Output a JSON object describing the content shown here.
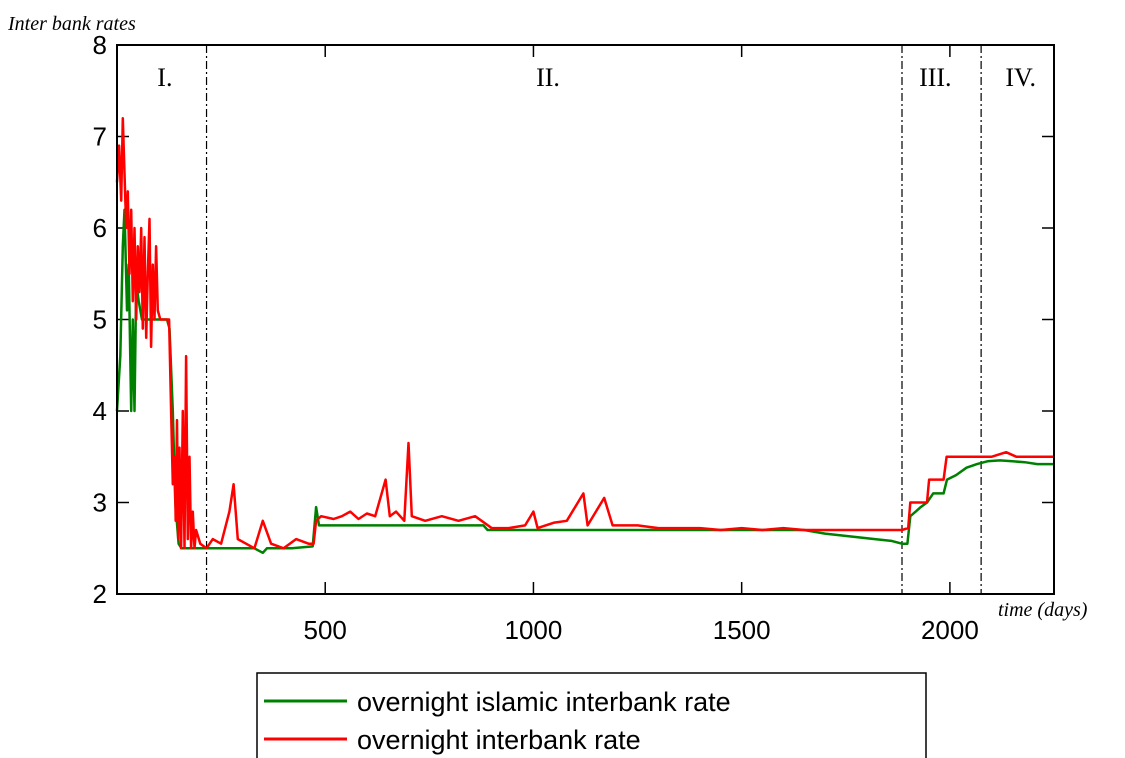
{
  "chart_data": {
    "type": "line",
    "ylabel": "Inter bank rates",
    "xlabel": "time (days)",
    "xlim": [
      0,
      2250
    ],
    "ylim": [
      2,
      8
    ],
    "x_ticks": [
      500,
      1000,
      1500,
      2000
    ],
    "y_ticks": [
      2,
      3,
      4,
      5,
      6,
      7,
      8
    ],
    "grid": false,
    "legend_position": "bottom-center",
    "regime_boundaries": [
      215,
      1885,
      2075
    ],
    "regimes": [
      {
        "label": "I.",
        "x": 115
      },
      {
        "label": "II.",
        "x": 1035
      },
      {
        "label": "III.",
        "x": 1965
      },
      {
        "label": "IV.",
        "x": 2170
      }
    ],
    "series": [
      {
        "name": "overnight islamic interbank rate",
        "color": "#008000",
        "points": [
          [
            0,
            4.0
          ],
          [
            8,
            4.6
          ],
          [
            14,
            5.8
          ],
          [
            18,
            6.2
          ],
          [
            24,
            5.1
          ],
          [
            28,
            5.6
          ],
          [
            34,
            4.0
          ],
          [
            38,
            5.0
          ],
          [
            42,
            4.0
          ],
          [
            46,
            5.4
          ],
          [
            52,
            5.2
          ],
          [
            60,
            5.0
          ],
          [
            80,
            5.0
          ],
          [
            100,
            5.0
          ],
          [
            120,
            5.0
          ],
          [
            126,
            4.9
          ],
          [
            134,
            4.0
          ],
          [
            140,
            3.0
          ],
          [
            148,
            2.55
          ],
          [
            155,
            2.5
          ],
          [
            200,
            2.5
          ],
          [
            260,
            2.5
          ],
          [
            330,
            2.5
          ],
          [
            350,
            2.45
          ],
          [
            360,
            2.5
          ],
          [
            420,
            2.5
          ],
          [
            470,
            2.52
          ],
          [
            478,
            2.95
          ],
          [
            485,
            2.75
          ],
          [
            540,
            2.75
          ],
          [
            650,
            2.75
          ],
          [
            760,
            2.75
          ],
          [
            880,
            2.75
          ],
          [
            890,
            2.7
          ],
          [
            1000,
            2.7
          ],
          [
            1200,
            2.7
          ],
          [
            1400,
            2.7
          ],
          [
            1500,
            2.7
          ],
          [
            1650,
            2.7
          ],
          [
            1700,
            2.66
          ],
          [
            1760,
            2.63
          ],
          [
            1820,
            2.6
          ],
          [
            1860,
            2.58
          ],
          [
            1885,
            2.55
          ],
          [
            1898,
            2.55
          ],
          [
            1905,
            2.85
          ],
          [
            1918,
            2.9
          ],
          [
            1930,
            2.95
          ],
          [
            1945,
            3.0
          ],
          [
            1960,
            3.1
          ],
          [
            1985,
            3.1
          ],
          [
            1993,
            3.25
          ],
          [
            2015,
            3.3
          ],
          [
            2040,
            3.38
          ],
          [
            2065,
            3.42
          ],
          [
            2090,
            3.45
          ],
          [
            2120,
            3.46
          ],
          [
            2150,
            3.45
          ],
          [
            2180,
            3.44
          ],
          [
            2210,
            3.42
          ],
          [
            2250,
            3.42
          ]
        ]
      },
      {
        "name": "overnight interbank rate",
        "color": "#ff0000",
        "points": [
          [
            0,
            6.5
          ],
          [
            5,
            6.9
          ],
          [
            10,
            6.3
          ],
          [
            14,
            7.2
          ],
          [
            18,
            6.6
          ],
          [
            22,
            6.0
          ],
          [
            26,
            6.4
          ],
          [
            30,
            5.5
          ],
          [
            34,
            6.2
          ],
          [
            38,
            5.2
          ],
          [
            42,
            6.0
          ],
          [
            46,
            5.0
          ],
          [
            50,
            5.8
          ],
          [
            54,
            5.3
          ],
          [
            58,
            6.0
          ],
          [
            62,
            4.9
          ],
          [
            66,
            5.9
          ],
          [
            70,
            4.8
          ],
          [
            74,
            5.5
          ],
          [
            78,
            6.1
          ],
          [
            82,
            4.7
          ],
          [
            86,
            5.6
          ],
          [
            90,
            5.0
          ],
          [
            94,
            5.8
          ],
          [
            98,
            5.1
          ],
          [
            104,
            5.0
          ],
          [
            112,
            5.0
          ],
          [
            120,
            5.0
          ],
          [
            125,
            5.0
          ],
          [
            130,
            4.0
          ],
          [
            134,
            3.2
          ],
          [
            138,
            3.5
          ],
          [
            141,
            2.8
          ],
          [
            144,
            3.9
          ],
          [
            147,
            2.6
          ],
          [
            150,
            3.6
          ],
          [
            154,
            2.5
          ],
          [
            158,
            4.0
          ],
          [
            162,
            2.5
          ],
          [
            166,
            4.6
          ],
          [
            170,
            2.6
          ],
          [
            174,
            3.5
          ],
          [
            178,
            2.5
          ],
          [
            182,
            2.9
          ],
          [
            186,
            2.5
          ],
          [
            190,
            2.7
          ],
          [
            200,
            2.55
          ],
          [
            215,
            2.5
          ],
          [
            230,
            2.6
          ],
          [
            250,
            2.55
          ],
          [
            270,
            2.9
          ],
          [
            280,
            3.2
          ],
          [
            290,
            2.6
          ],
          [
            310,
            2.55
          ],
          [
            330,
            2.5
          ],
          [
            350,
            2.8
          ],
          [
            370,
            2.55
          ],
          [
            400,
            2.5
          ],
          [
            430,
            2.6
          ],
          [
            460,
            2.55
          ],
          [
            472,
            2.55
          ],
          [
            478,
            2.8
          ],
          [
            490,
            2.85
          ],
          [
            520,
            2.82
          ],
          [
            540,
            2.85
          ],
          [
            560,
            2.9
          ],
          [
            580,
            2.82
          ],
          [
            600,
            2.88
          ],
          [
            620,
            2.85
          ],
          [
            645,
            3.25
          ],
          [
            655,
            2.85
          ],
          [
            670,
            2.9
          ],
          [
            690,
            2.8
          ],
          [
            700,
            3.65
          ],
          [
            708,
            2.85
          ],
          [
            740,
            2.8
          ],
          [
            780,
            2.85
          ],
          [
            820,
            2.8
          ],
          [
            860,
            2.85
          ],
          [
            900,
            2.72
          ],
          [
            940,
            2.72
          ],
          [
            980,
            2.75
          ],
          [
            1000,
            2.9
          ],
          [
            1010,
            2.72
          ],
          [
            1050,
            2.78
          ],
          [
            1080,
            2.8
          ],
          [
            1100,
            2.95
          ],
          [
            1120,
            3.1
          ],
          [
            1130,
            2.75
          ],
          [
            1150,
            2.9
          ],
          [
            1170,
            3.05
          ],
          [
            1190,
            2.75
          ],
          [
            1250,
            2.75
          ],
          [
            1300,
            2.72
          ],
          [
            1350,
            2.72
          ],
          [
            1400,
            2.72
          ],
          [
            1450,
            2.7
          ],
          [
            1500,
            2.72
          ],
          [
            1550,
            2.7
          ],
          [
            1600,
            2.72
          ],
          [
            1650,
            2.7
          ],
          [
            1700,
            2.7
          ],
          [
            1800,
            2.7
          ],
          [
            1885,
            2.7
          ],
          [
            1900,
            2.72
          ],
          [
            1905,
            3.0
          ],
          [
            1925,
            3.0
          ],
          [
            1945,
            3.0
          ],
          [
            1950,
            3.25
          ],
          [
            1985,
            3.25
          ],
          [
            1992,
            3.5
          ],
          [
            2050,
            3.5
          ],
          [
            2100,
            3.5
          ],
          [
            2135,
            3.55
          ],
          [
            2160,
            3.5
          ],
          [
            2200,
            3.5
          ],
          [
            2250,
            3.5
          ]
        ]
      }
    ]
  }
}
